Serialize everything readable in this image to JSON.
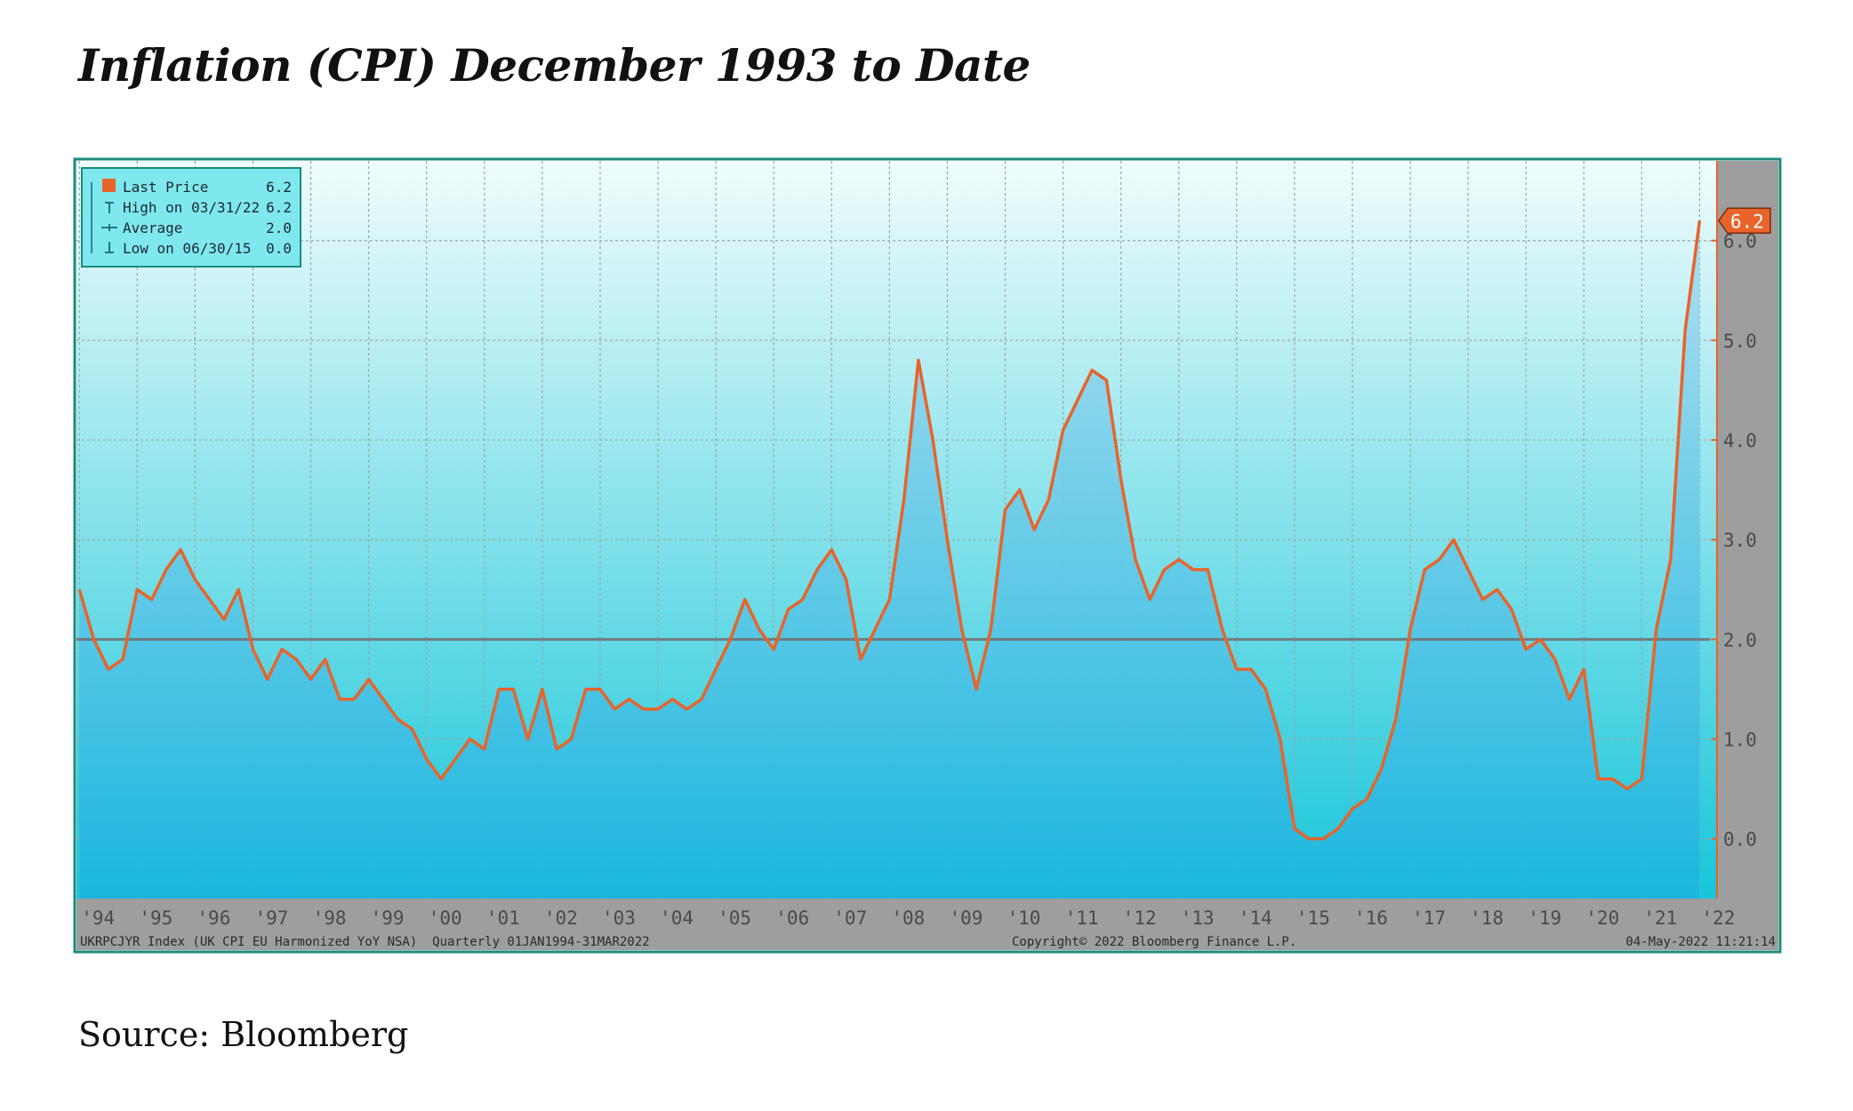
{
  "page": {
    "title": "Inflation (CPI) December 1993 to Date",
    "source": "Source: Bloomberg"
  },
  "chart_data": {
    "type": "area",
    "title": "",
    "xlabel": "",
    "ylabel": "",
    "ylim": [
      -0.6,
      6.8
    ],
    "yticks": [
      0.0,
      1.0,
      2.0,
      3.0,
      4.0,
      5.0,
      6.0
    ],
    "ytick_labels": [
      "0.0",
      "1.0",
      "2.0",
      "3.0",
      "4.0",
      "5.0",
      "6.0"
    ],
    "grid": true,
    "legend_position": "top-left",
    "x_tick_labels": [
      "'94",
      "'95",
      "'96",
      "'97",
      "'98",
      "'99",
      "'00",
      "'01",
      "'02",
      "'03",
      "'04",
      "'05",
      "'06",
      "'07",
      "'08",
      "'09",
      "'10",
      "'11",
      "'12",
      "'13",
      "'14",
      "'15",
      "'16",
      "'17",
      "'18",
      "'19",
      "'20",
      "'21",
      "'22"
    ],
    "x_tick_years": [
      1994,
      1995,
      1996,
      1997,
      1998,
      1999,
      2000,
      2001,
      2002,
      2003,
      2004,
      2005,
      2006,
      2007,
      2008,
      2009,
      2010,
      2011,
      2012,
      2013,
      2014,
      2015,
      2016,
      2017,
      2018,
      2019,
      2020,
      2021,
      2022
    ],
    "x_range": [
      1993.95,
      2022.3
    ],
    "series": [
      {
        "color": "#e8642a",
        "x": [
          1994.0,
          1994.25,
          1994.5,
          1994.75,
          1995.0,
          1995.25,
          1995.5,
          1995.75,
          1996.0,
          1996.25,
          1996.5,
          1996.75,
          1997.0,
          1997.25,
          1997.5,
          1997.75,
          1998.0,
          1998.25,
          1998.5,
          1998.75,
          1999.0,
          1999.25,
          1999.5,
          1999.75,
          2000.0,
          2000.25,
          2000.5,
          2000.75,
          2001.0,
          2001.25,
          2001.5,
          2001.75,
          2002.0,
          2002.25,
          2002.5,
          2002.75,
          2003.0,
          2003.25,
          2003.5,
          2003.75,
          2004.0,
          2004.25,
          2004.5,
          2004.75,
          2005.0,
          2005.25,
          2005.5,
          2005.75,
          2006.0,
          2006.25,
          2006.5,
          2006.75,
          2007.0,
          2007.25,
          2007.5,
          2007.75,
          2008.0,
          2008.25,
          2008.5,
          2008.75,
          2009.0,
          2009.25,
          2009.5,
          2009.75,
          2010.0,
          2010.25,
          2010.5,
          2010.75,
          2011.0,
          2011.25,
          2011.5,
          2011.75,
          2012.0,
          2012.25,
          2012.5,
          2012.75,
          2013.0,
          2013.25,
          2013.5,
          2013.75,
          2014.0,
          2014.25,
          2014.5,
          2014.75,
          2015.0,
          2015.25,
          2015.5,
          2015.75,
          2016.0,
          2016.25,
          2016.5,
          2016.75,
          2017.0,
          2017.25,
          2017.5,
          2017.75,
          2018.0,
          2018.25,
          2018.5,
          2018.75,
          2019.0,
          2019.25,
          2019.5,
          2019.75,
          2020.0,
          2020.25,
          2020.5,
          2020.75,
          2021.0,
          2021.25,
          2021.5,
          2021.75,
          2022.0
        ],
        "y": [
          2.5,
          2.0,
          1.7,
          1.8,
          2.5,
          2.4,
          2.7,
          2.9,
          2.6,
          2.4,
          2.2,
          2.5,
          1.9,
          1.6,
          1.9,
          1.8,
          1.6,
          1.8,
          1.4,
          1.4,
          1.6,
          1.4,
          1.2,
          1.1,
          0.8,
          0.6,
          0.8,
          1.0,
          0.9,
          1.5,
          1.5,
          1.0,
          1.5,
          0.9,
          1.0,
          1.5,
          1.5,
          1.3,
          1.4,
          1.3,
          1.3,
          1.4,
          1.3,
          1.4,
          1.7,
          2.0,
          2.4,
          2.1,
          1.9,
          2.3,
          2.4,
          2.7,
          2.9,
          2.6,
          1.8,
          2.1,
          2.4,
          3.4,
          4.8,
          4.0,
          3.0,
          2.1,
          1.5,
          2.1,
          3.3,
          3.5,
          3.1,
          3.4,
          4.1,
          4.4,
          4.7,
          4.6,
          3.6,
          2.8,
          2.4,
          2.7,
          2.8,
          2.7,
          2.7,
          2.1,
          1.7,
          1.7,
          1.5,
          1.0,
          0.1,
          0.0,
          0.0,
          0.1,
          0.3,
          0.4,
          0.7,
          1.2,
          2.1,
          2.7,
          2.8,
          3.0,
          2.7,
          2.4,
          2.5,
          2.3,
          1.9,
          2.0,
          1.8,
          1.4,
          1.7,
          0.6,
          0.6,
          0.5,
          0.6,
          2.1,
          2.8,
          5.1,
          6.2
        ]
      },
      {
        "name": "Average",
        "value": 2.0,
        "color": "#707a7c"
      }
    ],
    "legend": {
      "rows": [
        {
          "label": "Last Price",
          "value": "6.2",
          "marker": "square",
          "color": "#e8642a"
        },
        {
          "label": "High on 03/31/22",
          "value": "6.2",
          "marker": "high",
          "color": "#0e6a78"
        },
        {
          "label": "Average",
          "value": "2.0",
          "marker": "average",
          "color": "#0e6a78"
        },
        {
          "label": "Low on 06/30/15",
          "value": "0.0",
          "marker": "low",
          "color": "#0e6a78"
        }
      ]
    },
    "last_value_tag": "6.2",
    "footer_left": "UKRPCJYR Index (UK CPI EU Harmonized YoY NSA)  Quarterly 01JAN1994-31MAR2022",
    "footer_center": "Copyright© 2022 Bloomberg Finance L.P.",
    "footer_right": "04-May-2022 11:21:14",
    "colors": {
      "frame": "#1d8a7a",
      "plot_top": "#f0fcfc",
      "plot_bottom": "#16c6d9",
      "area_top": "#a9dcef",
      "area_bottom": "#1bb5e0",
      "grid": "#9aa6aa",
      "bars": "#9e9e9e",
      "axis_text": "#4a4a4a",
      "legend_bg": "#7fe8ee",
      "legend_border": "#1d8a7a",
      "tag_bg": "#e8642a"
    }
  }
}
